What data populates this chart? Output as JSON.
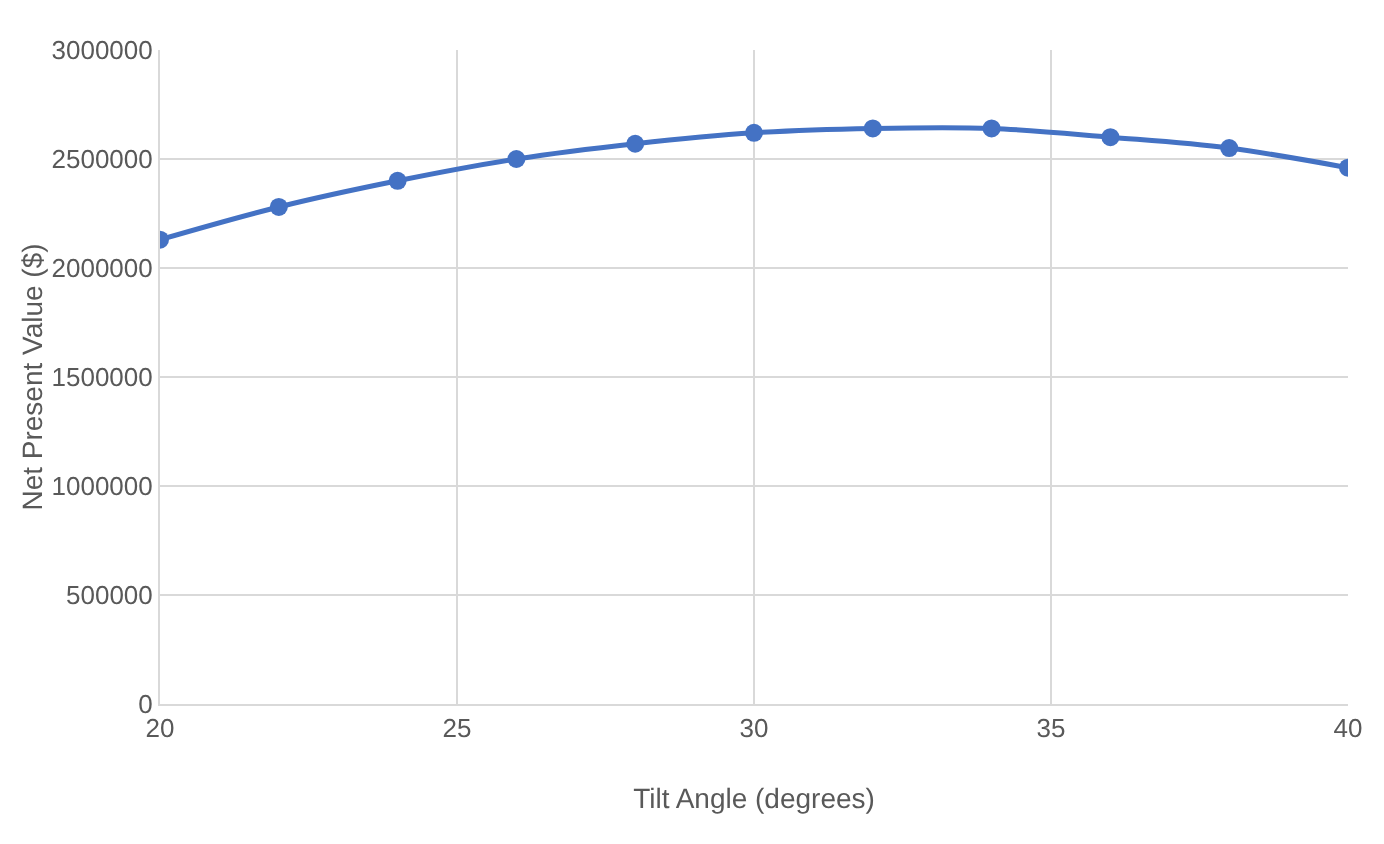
{
  "chart_data": {
    "type": "line",
    "xlabel": "Tilt Angle (degrees)",
    "ylabel": "Net Present Value ($)",
    "x": [
      20,
      22,
      24,
      26,
      28,
      30,
      32,
      34,
      36,
      38,
      40
    ],
    "series": [
      {
        "color": "#4472c4",
        "values": [
          2130000,
          2280000,
          2400000,
          2500000,
          2570000,
          2620000,
          2640000,
          2640000,
          2600000,
          2550000,
          2460000
        ]
      }
    ],
    "xlim": [
      20,
      40
    ],
    "xticks": [
      20,
      25,
      30,
      35,
      40
    ],
    "ylim": [
      0,
      3000000
    ],
    "yticks": [
      0,
      500000,
      1000000,
      1500000,
      2000000,
      2500000,
      3000000
    ],
    "grid": true,
    "marker": "circle",
    "line_style": "solid",
    "legend": false
  }
}
